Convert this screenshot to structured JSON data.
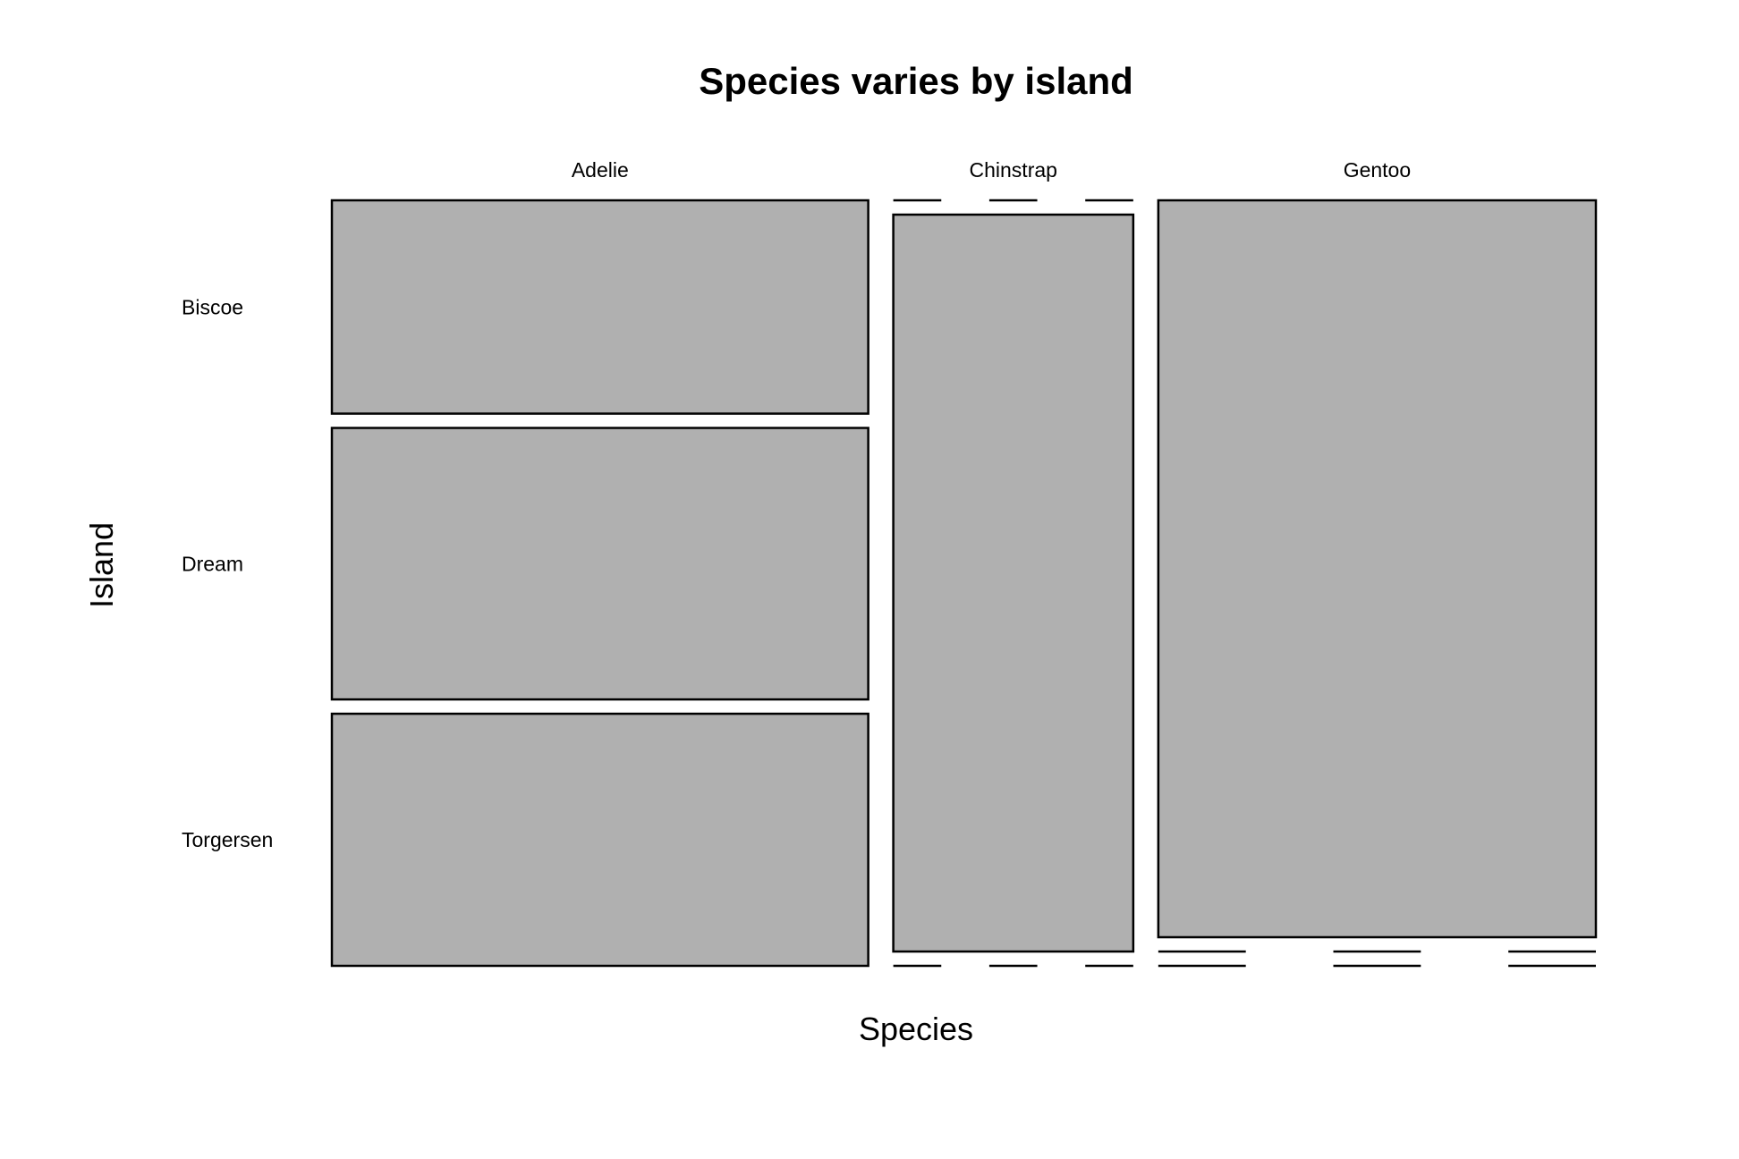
{
  "chart_data": {
    "type": "mosaic",
    "title": "Species varies by island",
    "xlabel": "Species",
    "ylabel": "Island",
    "x_categories": [
      "Adelie",
      "Chinstrap",
      "Gentoo"
    ],
    "y_categories": [
      "Biscoe",
      "Dream",
      "Torgersen"
    ],
    "counts": {
      "Adelie": {
        "Biscoe": 44,
        "Dream": 56,
        "Torgersen": 52
      },
      "Chinstrap": {
        "Biscoe": 0,
        "Dream": 68,
        "Torgersen": 0
      },
      "Gentoo": {
        "Biscoe": 124,
        "Dream": 0,
        "Torgersen": 0
      }
    },
    "tile_color": "#b0b0b0",
    "border_color": "#000000",
    "background": "#ffffff"
  }
}
